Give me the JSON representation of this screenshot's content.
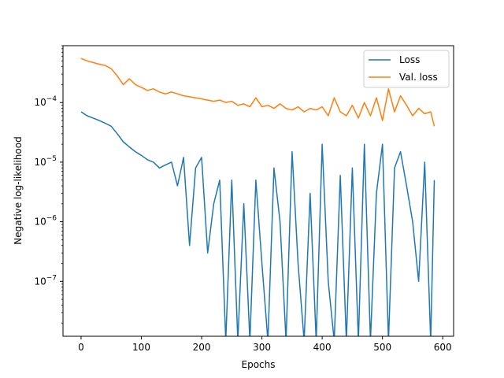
{
  "chart_data": {
    "type": "line",
    "title": "",
    "xlabel": "Epochs",
    "ylabel": "Negative log-likelihood",
    "xscale": "linear",
    "yscale": "log",
    "xlim": [
      -30,
      618
    ],
    "ylim": [
      1.2e-08,
      0.0009
    ],
    "grid": false,
    "legend_position": "top-right",
    "x_ticks": [
      0,
      100,
      200,
      300,
      400,
      500,
      600
    ],
    "y_ticks": [
      {
        "value": 1e-07,
        "mantissa": "10",
        "exp": "−7"
      },
      {
        "value": 1e-06,
        "mantissa": "10",
        "exp": "−6"
      },
      {
        "value": 1e-05,
        "mantissa": "10",
        "exp": "−5"
      },
      {
        "value": 0.0001,
        "mantissa": "10",
        "exp": "−4"
      }
    ],
    "series": [
      {
        "name": "Loss",
        "color": "#1f77b4",
        "x": [
          0,
          10,
          20,
          30,
          40,
          50,
          60,
          70,
          80,
          90,
          100,
          110,
          120,
          130,
          140,
          150,
          160,
          170,
          180,
          190,
          200,
          210,
          220,
          230,
          240,
          250,
          260,
          270,
          280,
          290,
          300,
          310,
          320,
          330,
          340,
          350,
          360,
          370,
          380,
          390,
          400,
          410,
          420,
          430,
          440,
          450,
          460,
          470,
          480,
          490,
          500,
          510,
          520,
          530,
          540,
          550,
          560,
          570,
          580,
          586
        ],
        "y": [
          7e-05,
          6e-05,
          5.5e-05,
          5e-05,
          4.5e-05,
          4e-05,
          3e-05,
          2.2e-05,
          1.8e-05,
          1.5e-05,
          1.3e-05,
          1.1e-05,
          1e-05,
          8e-06,
          9e-06,
          1e-05,
          4e-06,
          1.2e-05,
          4e-07,
          8e-06,
          1.2e-05,
          3e-07,
          2e-06,
          5e-06,
          1e-08,
          5e-06,
          1e-08,
          2e-06,
          1e-08,
          5e-06,
          2e-07,
          1e-08,
          8e-06,
          1e-06,
          1e-08,
          1.5e-05,
          2e-07,
          1e-08,
          3e-06,
          1e-08,
          2e-05,
          1e-07,
          1e-08,
          6e-06,
          1e-08,
          8e-06,
          1e-08,
          2e-05,
          1e-08,
          3e-06,
          2e-05,
          1e-08,
          8e-06,
          1.5e-05,
          4e-06,
          1e-06,
          1e-07,
          1e-05,
          1e-08,
          5e-06
        ]
      },
      {
        "name": "Val. loss",
        "color": "#ff7f0e",
        "x": [
          0,
          10,
          20,
          30,
          40,
          50,
          60,
          70,
          80,
          90,
          100,
          110,
          120,
          130,
          140,
          150,
          160,
          170,
          180,
          190,
          200,
          210,
          220,
          230,
          240,
          250,
          260,
          270,
          280,
          290,
          300,
          310,
          320,
          330,
          340,
          350,
          360,
          370,
          380,
          390,
          400,
          410,
          420,
          430,
          440,
          450,
          460,
          470,
          480,
          490,
          500,
          510,
          520,
          530,
          540,
          550,
          560,
          570,
          580,
          586
        ],
        "y": [
          0.00055,
          0.0005,
          0.00047,
          0.00044,
          0.00042,
          0.00037,
          0.00028,
          0.0002,
          0.00025,
          0.0002,
          0.00018,
          0.00016,
          0.00017,
          0.00015,
          0.00014,
          0.00015,
          0.00014,
          0.00013,
          0.000125,
          0.00012,
          0.000115,
          0.00011,
          0.000105,
          0.00011,
          0.0001,
          0.000105,
          9e-05,
          9.5e-05,
          8.5e-05,
          0.00012,
          8.5e-05,
          9e-05,
          8e-05,
          9.5e-05,
          8e-05,
          7.5e-05,
          8.5e-05,
          7e-05,
          8e-05,
          7.5e-05,
          8.5e-05,
          6e-05,
          0.00012,
          7e-05,
          6e-05,
          9e-05,
          5.5e-05,
          0.0001,
          6e-05,
          0.00012,
          5e-05,
          0.00017,
          7e-05,
          0.00013,
          9e-05,
          6e-05,
          8e-05,
          6.5e-05,
          7e-05,
          4e-05
        ]
      }
    ]
  }
}
